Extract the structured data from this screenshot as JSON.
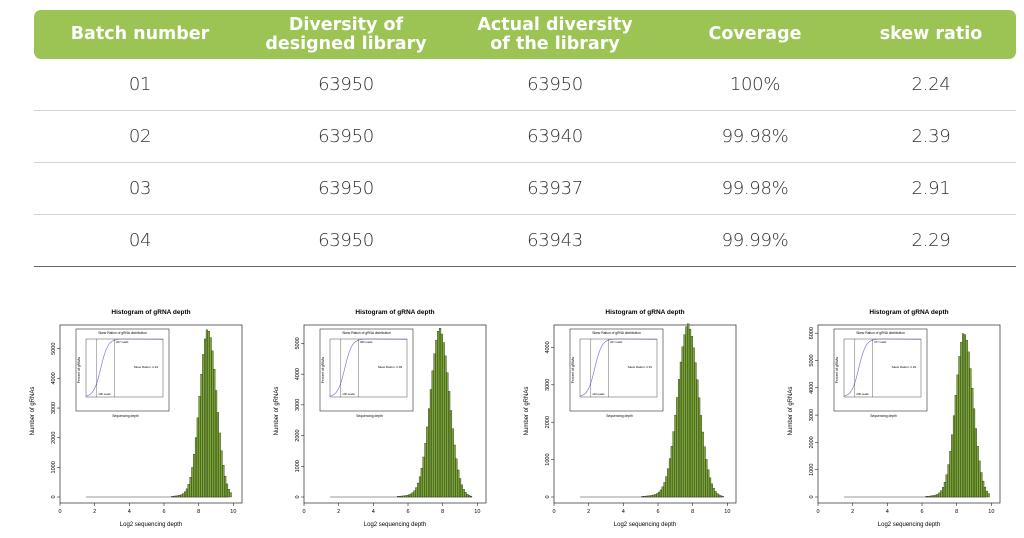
{
  "table": {
    "headers": [
      "Batch number",
      "Diversity of\ndesigned library",
      "Actual diversity\nof the library",
      "Coverage",
      "skew ratio"
    ],
    "rows": [
      [
        "01",
        "63950",
        "63950",
        "100%",
        "2.24"
      ],
      [
        "02",
        "63950",
        "63940",
        "99.98%",
        "2.39"
      ],
      [
        "03",
        "63950",
        "63937",
        "99.98%",
        "2.91"
      ],
      [
        "04",
        "63950",
        "63943",
        "99.99%",
        "2.29"
      ]
    ],
    "header_color": "#9bc454"
  },
  "chart_data": [
    {
      "type": "bar",
      "title": "Histogram of gRNA depth",
      "xlabel": "Log2 sequencing depth",
      "ylabel": "Number of gRNAs",
      "xlim": [
        0,
        10.5
      ],
      "ylim": [
        0,
        5800
      ],
      "yticks": [
        0,
        1000,
        2000,
        3000,
        4000,
        5000
      ],
      "xticks": [
        0,
        2,
        4,
        6,
        8,
        10
      ],
      "bar_color": "#7aa832",
      "mean": 8.55,
      "sd": 0.48,
      "peak": 5600,
      "inset": {
        "title": "Skew Ration of gRNA distribution",
        "xlabel": "Sequencing depth",
        "ylabel": "Percent of gRNAs",
        "skew_label": "Skew Ration: 2.24",
        "low_label": "100 reads",
        "high_label": "327 reads"
      }
    },
    {
      "type": "bar",
      "title": "Histogram of gRNA depth",
      "xlabel": "Log2 sequencing depth",
      "ylabel": "Number of gRNAs",
      "xlim": [
        0,
        10.5
      ],
      "ylim": [
        0,
        5600
      ],
      "yticks": [
        0,
        1000,
        2000,
        3000,
        4000,
        5000
      ],
      "xticks": [
        0,
        2,
        4,
        6,
        8,
        10
      ],
      "bar_color": "#7aa832",
      "mean": 7.85,
      "sd": 0.55,
      "peak": 5400,
      "inset": {
        "title": "Skew Ration of gRNA distribution",
        "xlabel": "Sequencing depth",
        "ylabel": "Percent of gRNAs",
        "skew_label": "Skew Ration: 2.39",
        "low_label": "130 reads",
        "high_label": "360 reads"
      }
    },
    {
      "type": "bar",
      "title": "Histogram of gRNA depth",
      "xlabel": "Log2 sequencing depth",
      "ylabel": "Number of gRNAs",
      "xlim": [
        0,
        10.5
      ],
      "ylim": [
        0,
        4600
      ],
      "yticks": [
        0,
        1000,
        2000,
        3000,
        4000
      ],
      "xticks": [
        0,
        2,
        4,
        6,
        8,
        10
      ],
      "bar_color": "#7aa832",
      "mean": 7.75,
      "sd": 0.6,
      "peak": 4550,
      "inset": {
        "title": "Skew Ration of gRNA distribution",
        "xlabel": "Sequencing depth",
        "ylabel": "Percent of gRNAs",
        "skew_label": "Skew Ration: 2.91",
        "low_label": "113 reads",
        "high_label": "327 reads"
      }
    },
    {
      "type": "bar",
      "title": "Histogram of gRNA depth",
      "xlabel": "Log2 sequencing depth",
      "ylabel": "Number of gRNAs",
      "xlim": [
        0,
        10.5
      ],
      "ylim": [
        0,
        6300
      ],
      "yticks": [
        0,
        1000,
        2000,
        3000,
        4000,
        5000,
        6000
      ],
      "xticks": [
        0,
        2,
        4,
        6,
        8,
        10
      ],
      "bar_color": "#7aa832",
      "mean": 8.45,
      "sd": 0.5,
      "peak": 5950,
      "inset": {
        "title": "Skew Ration of gRNA distribution",
        "xlabel": "Sequencing depth",
        "ylabel": "Percent of gRNAs",
        "skew_label": "Skew Ration: 2.29",
        "low_label": "200 reads",
        "high_label": "477 reads"
      }
    }
  ]
}
